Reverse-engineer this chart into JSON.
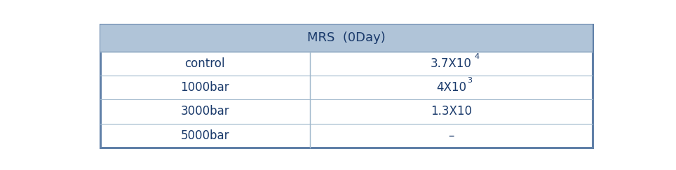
{
  "title": "MRS  (0Day)",
  "header_bg": "#b0c4d8",
  "header_text_color": "#1a3a6b",
  "border_color": "#6080a8",
  "cell_bg": "#ffffff",
  "row_line_color": "#a0b8cc",
  "text_color": "#1a3a6b",
  "rows": [
    {
      "label": "control",
      "value": "3.7X10",
      "superscript": "4"
    },
    {
      "label": "1000bar",
      "value": "4X10",
      "superscript": "3"
    },
    {
      "label": "3000bar",
      "value": "1.3X10",
      "superscript": ""
    },
    {
      "label": "5000bar",
      "value": "–",
      "superscript": ""
    }
  ],
  "col_split": 0.43,
  "figsize": [
    9.64,
    2.43
  ],
  "dpi": 100,
  "header_fontsize": 13,
  "cell_fontsize": 12,
  "super_fontsize": 8
}
